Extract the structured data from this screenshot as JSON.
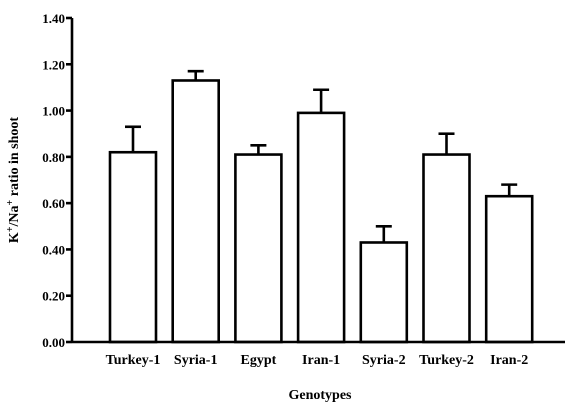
{
  "chart_data": {
    "type": "bar",
    "categories": [
      "Turkey-1",
      "Syria-1",
      "Egypt",
      "Iran-1",
      "Syria-2",
      "Turkey-2",
      "Iran-2"
    ],
    "values": [
      0.82,
      1.13,
      0.81,
      0.99,
      0.43,
      0.81,
      0.63
    ],
    "errors": [
      0.11,
      0.04,
      0.04,
      0.1,
      0.07,
      0.09,
      0.05
    ],
    "yticks": [
      "0.00",
      "0.20",
      "0.40",
      "0.60",
      "0.80",
      "1.00",
      "1.20",
      "1.40"
    ],
    "ylim": [
      0,
      1.4
    ],
    "xlabel": "Genotypes",
    "ylabel_parts": {
      "k": "K",
      "sup1": "+",
      "slash": "/Na",
      "sup2": "+",
      "rest": " ratio in shoot"
    },
    "grid": false,
    "legend": "none",
    "bar_fill": "#ffffff",
    "bar_stroke": "#000000"
  }
}
